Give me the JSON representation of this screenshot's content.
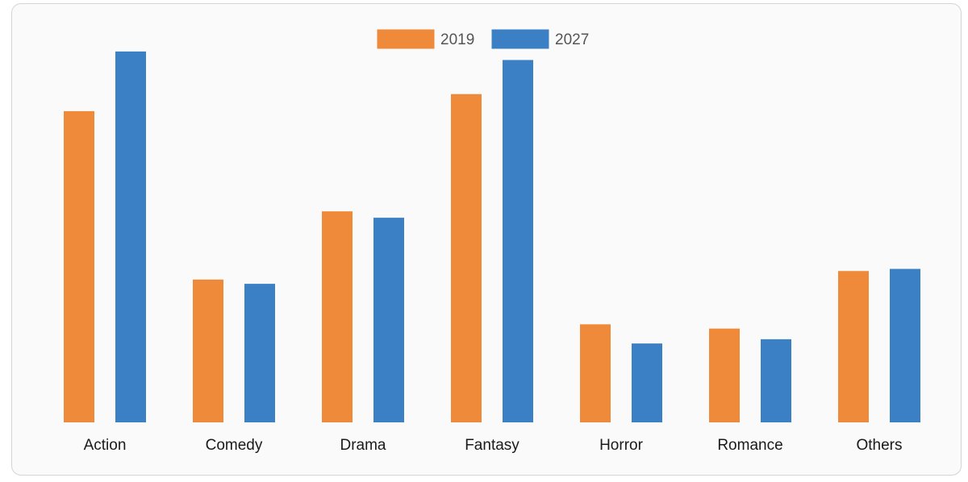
{
  "chart_data": {
    "type": "bar",
    "title": "",
    "xlabel": "",
    "ylabel": "",
    "categories": [
      "Action",
      "Comedy",
      "Drama",
      "Fantasy",
      "Horror",
      "Romance",
      "Others"
    ],
    "series": [
      {
        "name": "2019",
        "color": "#EE8A3A",
        "values": [
          73,
          33.5,
          49.5,
          77,
          23,
          22,
          35.5
        ]
      },
      {
        "name": "2027",
        "color": "#3B7FC4",
        "values": [
          87,
          32.5,
          48,
          85,
          18.5,
          19.5,
          36
        ]
      }
    ],
    "ylim": [
      0,
      90
    ],
    "grid": false,
    "legend_position": "top-center",
    "y_axis_visible": false
  }
}
